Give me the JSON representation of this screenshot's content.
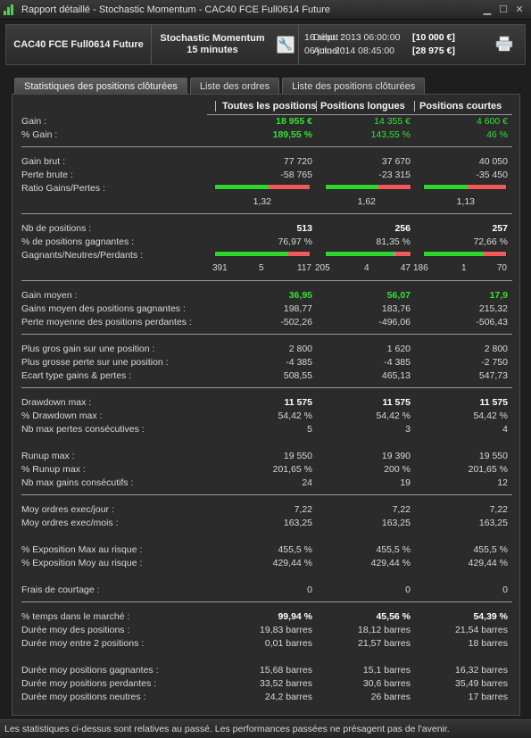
{
  "window": {
    "title": "Rapport détaillé - Stochastic Momentum - CAC40 FCE Full0614 Future"
  },
  "header": {
    "instrument": "CAC40 FCE Full0614 Future",
    "strategy_line1": "Stochastic Momentum",
    "strategy_line2": "15 minutes",
    "start_label": "Début :",
    "start_date": "16 sept. 2013 06:00:00",
    "start_amount": "[10 000 €]",
    "current_label": "Actuel :",
    "current_date": "06 juin 2014 08:45:00",
    "current_amount": "[28 975 €]"
  },
  "tabs": [
    {
      "label": "Statistiques des positions clôturées",
      "active": true
    },
    {
      "label": "Liste des ordres",
      "active": false
    },
    {
      "label": "Liste des positions clôturées",
      "active": false
    }
  ],
  "columns": [
    "Toutes les positions",
    "Positions longues",
    "Positions courtes"
  ],
  "stats": {
    "gain": {
      "label": "Gain :",
      "values": [
        "18 955 €",
        "14 355 €",
        "4 600 €"
      ]
    },
    "pct_gain": {
      "label": "% Gain :",
      "values": [
        "189,55 %",
        "143,55 %",
        "46 %"
      ]
    },
    "gain_brut": {
      "label": "Gain brut :",
      "values": [
        "77 720",
        "37 670",
        "40 050"
      ]
    },
    "perte_brute": {
      "label": "Perte brute :",
      "values": [
        "-58 765",
        "-23 315",
        "-35 450"
      ]
    },
    "ratio": {
      "label": "Ratio Gains/Pertes :",
      "values": [
        "1,32",
        "1,62",
        "1,13"
      ],
      "green_fraction": [
        0.57,
        0.62,
        0.53
      ]
    },
    "nb_positions": {
      "label": "Nb de positions :",
      "values": [
        "513",
        "256",
        "257"
      ]
    },
    "pct_gagnantes": {
      "label": "% de positions gagnantes :",
      "values": [
        "76,97 %",
        "81,35 %",
        "72,66 %"
      ]
    },
    "gnp": {
      "label": "Gagnants/Neutres/Perdants :",
      "all": {
        "g": "391",
        "n": "5",
        "p": "117"
      },
      "long": {
        "g": "205",
        "n": "4",
        "p": "47"
      },
      "short": {
        "g": "186",
        "n": "1",
        "p": "70"
      },
      "fractions": [
        [
          0.762,
          0.01,
          0.228
        ],
        [
          0.801,
          0.016,
          0.184
        ],
        [
          0.724,
          0.004,
          0.272
        ]
      ]
    },
    "gain_moyen": {
      "label": "Gain moyen :",
      "values": [
        "36,95",
        "56,07",
        "17,9"
      ]
    },
    "gains_moyen_gagnantes": {
      "label": "Gains moyen des positions gagnantes :",
      "values": [
        "198,77",
        "183,76",
        "215,32"
      ]
    },
    "perte_moyenne": {
      "label": "Perte moyenne des positions perdantes :",
      "values": [
        "-502,26",
        "-496,06",
        "-506,43"
      ]
    },
    "plus_gros_gain": {
      "label": "Plus gros gain sur une position :",
      "values": [
        "2 800",
        "1 620",
        "2 800"
      ]
    },
    "plus_grosse_perte": {
      "label": "Plus grosse perte sur une position :",
      "values": [
        "-4 385",
        "-4 385",
        "-2 750"
      ]
    },
    "ecart_type": {
      "label": "Ecart type gains & pertes :",
      "values": [
        "508,55",
        "465,13",
        "547,73"
      ]
    },
    "drawdown_max": {
      "label": "Drawdown max :",
      "values": [
        "11 575",
        "11 575",
        "11 575"
      ]
    },
    "pct_drawdown": {
      "label": "% Drawdown max :",
      "values": [
        "54,42 %",
        "54,42 %",
        "54,42 %"
      ]
    },
    "nb_max_pertes": {
      "label": "Nb max pertes consécutives :",
      "values": [
        "5",
        "3",
        "4"
      ]
    },
    "runup_max": {
      "label": "Runup max :",
      "values": [
        "19 550",
        "19 390",
        "19 550"
      ]
    },
    "pct_runup": {
      "label": "% Runup max :",
      "values": [
        "201,65 %",
        "200 %",
        "201,65 %"
      ]
    },
    "nb_max_gains": {
      "label": "Nb max gains consécutifs :",
      "values": [
        "24",
        "19",
        "12"
      ]
    },
    "moy_jour": {
      "label": "Moy ordres exec/jour :",
      "values": [
        "7,22",
        "7,22",
        "7,22"
      ]
    },
    "moy_mois": {
      "label": "Moy ordres exec/mois :",
      "values": [
        "163,25",
        "163,25",
        "163,25"
      ]
    },
    "expo_max": {
      "label": "% Exposition Max au risque :",
      "values": [
        "455,5 %",
        "455,5 %",
        "455,5 %"
      ]
    },
    "expo_moy": {
      "label": "% Exposition Moy au risque :",
      "values": [
        "429,44 %",
        "429,44 %",
        "429,44 %"
      ]
    },
    "frais": {
      "label": "Frais de courtage :",
      "values": [
        "0",
        "0",
        "0"
      ]
    },
    "temps_marche": {
      "label": "% temps dans le marché :",
      "values": [
        "99,94 %",
        "45,56 %",
        "54,39 %"
      ]
    },
    "duree_positions": {
      "label": "Durée moy des positions :",
      "values": [
        "19,83 barres",
        "18,12 barres",
        "21,54 barres"
      ]
    },
    "duree_entre": {
      "label": "Durée moy entre 2 positions :",
      "values": [
        "0,01 barres",
        "21,57 barres",
        "18 barres"
      ]
    },
    "duree_gagnantes": {
      "label": "Durée moy positions gagnantes :",
      "values": [
        "15,68 barres",
        "15,1 barres",
        "16,32 barres"
      ]
    },
    "duree_perdantes": {
      "label": "Durée moy positions perdantes :",
      "values": [
        "33,52 barres",
        "30,6 barres",
        "35,49 barres"
      ]
    },
    "duree_neutres": {
      "label": "Durée moy positions neutres :",
      "values": [
        "24,2 barres",
        "26 barres",
        "17 barres"
      ]
    }
  },
  "footer": {
    "text": "Les statistiques ci-dessus sont relatives au passé. Les performances passées ne présagent pas de l'avenir."
  },
  "colors": {
    "positive": "#35e035",
    "negative": "#ef5a5a",
    "background": "#2b2b2b"
  }
}
